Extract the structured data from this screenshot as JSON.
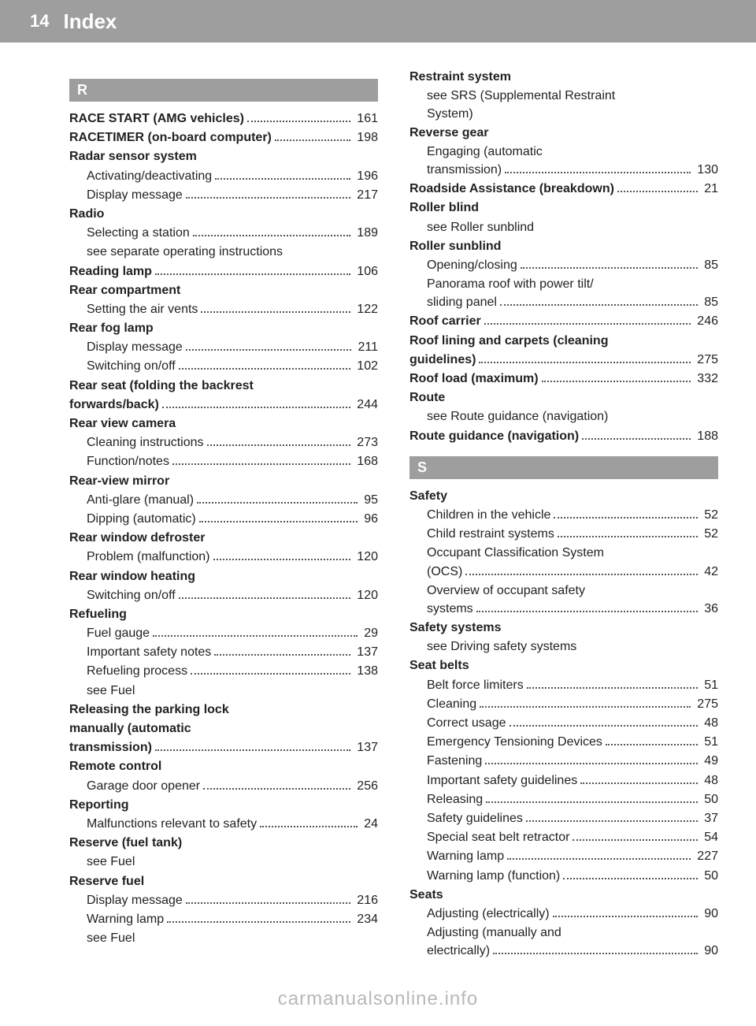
{
  "page_number": "14",
  "header": "Index",
  "footer": "carmanualsonline.info",
  "sections": {
    "R": {
      "letter": "R",
      "items": [
        {
          "type": "row",
          "bold": "RACE START (AMG vehicles)",
          "plain": "",
          "page": "161"
        },
        {
          "type": "row",
          "bold": "RACETIMER (on-board computer)",
          "plain": "",
          "page": "198"
        },
        {
          "type": "head",
          "text": "Radar sensor system"
        },
        {
          "type": "sub",
          "text": "Activating/deactivating",
          "page": "196"
        },
        {
          "type": "sub",
          "text": "Display message",
          "page": "217"
        },
        {
          "type": "head",
          "text": "Radio"
        },
        {
          "type": "sub",
          "text": "Selecting a station",
          "page": "189"
        },
        {
          "type": "see",
          "text": "see separate operating instructions"
        },
        {
          "type": "row",
          "bold": "Reading lamp",
          "plain": "",
          "page": "106"
        },
        {
          "type": "head",
          "text": "Rear compartment"
        },
        {
          "type": "sub",
          "text": "Setting the air vents",
          "page": "122"
        },
        {
          "type": "head",
          "text": "Rear fog lamp"
        },
        {
          "type": "sub",
          "text": "Display message",
          "page": "211"
        },
        {
          "type": "sub",
          "text": "Switching on/off",
          "page": "102"
        },
        {
          "type": "headmulti",
          "lines": [
            "Rear seat (folding the backrest"
          ]
        },
        {
          "type": "row",
          "bold": "forwards/back)",
          "plain": "",
          "page": "244"
        },
        {
          "type": "head",
          "text": "Rear view camera"
        },
        {
          "type": "sub",
          "text": "Cleaning instructions",
          "page": "273"
        },
        {
          "type": "sub",
          "text": "Function/notes",
          "page": "168"
        },
        {
          "type": "head",
          "text": "Rear-view mirror"
        },
        {
          "type": "sub",
          "text": "Anti-glare (manual)",
          "page": "95"
        },
        {
          "type": "sub",
          "text": "Dipping (automatic)",
          "page": "96"
        },
        {
          "type": "head",
          "text": "Rear window defroster"
        },
        {
          "type": "sub",
          "text": "Problem (malfunction)",
          "page": "120"
        },
        {
          "type": "head",
          "text": "Rear window heating"
        },
        {
          "type": "sub",
          "text": "Switching on/off",
          "page": "120"
        },
        {
          "type": "head",
          "text": "Refueling"
        },
        {
          "type": "sub",
          "text": "Fuel gauge",
          "page": "29"
        },
        {
          "type": "sub",
          "text": "Important safety notes",
          "page": "137"
        },
        {
          "type": "sub",
          "text": "Refueling process",
          "page": "138"
        },
        {
          "type": "see",
          "text": "see Fuel"
        },
        {
          "type": "headmulti",
          "lines": [
            "Releasing the parking lock",
            "manually (automatic"
          ]
        },
        {
          "type": "row",
          "bold": "transmission)",
          "plain": "",
          "page": "137"
        },
        {
          "type": "head",
          "text": "Remote control"
        },
        {
          "type": "sub",
          "text": "Garage door opener",
          "page": "256"
        },
        {
          "type": "head",
          "text": "Reporting"
        },
        {
          "type": "sub",
          "text": "Malfunctions relevant to safety",
          "page": "24"
        },
        {
          "type": "head",
          "text": "Reserve (fuel tank)"
        },
        {
          "type": "see",
          "text": "see Fuel"
        },
        {
          "type": "head",
          "text": "Reserve fuel"
        },
        {
          "type": "sub",
          "text": "Display message",
          "page": "216"
        },
        {
          "type": "sub",
          "text": "Warning lamp",
          "page": "234"
        },
        {
          "type": "see",
          "text": "see Fuel"
        }
      ],
      "items2": [
        {
          "type": "head",
          "text": "Restraint system"
        },
        {
          "type": "seemulti",
          "lines": [
            "see SRS (Supplemental Restraint",
            "System)"
          ]
        },
        {
          "type": "head",
          "text": "Reverse gear"
        },
        {
          "type": "submulti",
          "lines": [
            "Engaging (automatic"
          ]
        },
        {
          "type": "sub",
          "text": "transmission)",
          "page": "130"
        },
        {
          "type": "row",
          "bold": "Roadside Assistance (breakdown)",
          "plain": "",
          "page": "21"
        },
        {
          "type": "head",
          "text": "Roller blind"
        },
        {
          "type": "see",
          "text": "see Roller sunblind"
        },
        {
          "type": "head",
          "text": "Roller sunblind"
        },
        {
          "type": "sub",
          "text": "Opening/closing",
          "page": "85"
        },
        {
          "type": "submulti",
          "lines": [
            "Panorama roof with power tilt/"
          ]
        },
        {
          "type": "sub",
          "text": "sliding panel",
          "page": "85"
        },
        {
          "type": "row",
          "bold": "Roof carrier",
          "plain": "",
          "page": "246"
        },
        {
          "type": "headmulti",
          "lines": [
            "Roof lining and carpets (cleaning"
          ]
        },
        {
          "type": "row",
          "bold": "guidelines)",
          "plain": "",
          "page": "275"
        },
        {
          "type": "row",
          "bold": "Roof load (maximum)",
          "plain": "",
          "page": "332"
        },
        {
          "type": "head",
          "text": "Route"
        },
        {
          "type": "see",
          "text": "see Route guidance (navigation)"
        },
        {
          "type": "row",
          "bold": "Route guidance (navigation)",
          "plain": "",
          "page": "188"
        }
      ]
    },
    "S": {
      "letter": "S",
      "items": [
        {
          "type": "head",
          "text": "Safety"
        },
        {
          "type": "sub",
          "text": "Children in the vehicle",
          "page": "52"
        },
        {
          "type": "sub",
          "text": "Child restraint systems",
          "page": "52"
        },
        {
          "type": "submulti",
          "lines": [
            "Occupant Classification System"
          ]
        },
        {
          "type": "sub",
          "text": "(OCS)",
          "page": "42"
        },
        {
          "type": "submulti",
          "lines": [
            "Overview of occupant safety"
          ]
        },
        {
          "type": "sub",
          "text": "systems",
          "page": "36"
        },
        {
          "type": "head",
          "text": "Safety systems"
        },
        {
          "type": "see",
          "text": "see Driving safety systems"
        },
        {
          "type": "head",
          "text": "Seat belts"
        },
        {
          "type": "sub",
          "text": "Belt force limiters",
          "page": "51"
        },
        {
          "type": "sub",
          "text": "Cleaning",
          "page": "275"
        },
        {
          "type": "sub",
          "text": "Correct usage",
          "page": "48"
        },
        {
          "type": "sub",
          "text": "Emergency Tensioning Devices",
          "page": "51"
        },
        {
          "type": "sub",
          "text": "Fastening",
          "page": "49"
        },
        {
          "type": "sub",
          "text": "Important safety guidelines",
          "page": "48"
        },
        {
          "type": "sub",
          "text": "Releasing",
          "page": "50"
        },
        {
          "type": "sub",
          "text": "Safety guidelines",
          "page": "37"
        },
        {
          "type": "sub",
          "text": "Special seat belt retractor",
          "page": "54"
        },
        {
          "type": "sub",
          "text": "Warning lamp",
          "page": "227"
        },
        {
          "type": "sub",
          "text": "Warning lamp (function)",
          "page": "50"
        },
        {
          "type": "head",
          "text": "Seats"
        },
        {
          "type": "sub",
          "text": "Adjusting (electrically)",
          "page": "90"
        },
        {
          "type": "submulti",
          "lines": [
            "Adjusting (manually and"
          ]
        },
        {
          "type": "sub",
          "text": "electrically)",
          "page": "90"
        }
      ]
    }
  }
}
